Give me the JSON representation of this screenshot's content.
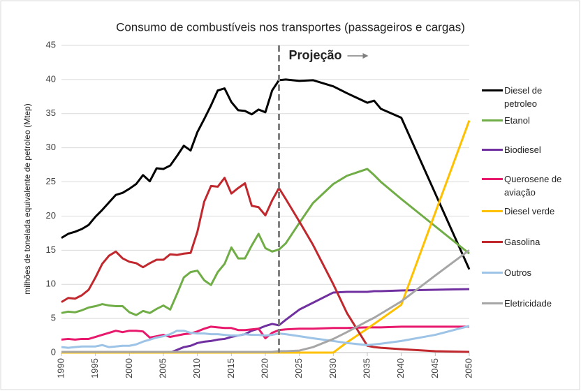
{
  "chart_data": {
    "type": "line",
    "title": "Consumo de combustíveis nos transportes (passageiros e cargas)",
    "y_label": "milhões de tonelada equivalente de petroleo (Mtep)",
    "annotations": [
      {
        "text": "Projeção",
        "x": 2022
      }
    ],
    "x": [
      1990,
      1991,
      1992,
      1993,
      1994,
      1995,
      1996,
      1997,
      1998,
      1999,
      2000,
      2001,
      2002,
      2003,
      2004,
      2005,
      2006,
      2007,
      2008,
      2009,
      2010,
      2011,
      2012,
      2013,
      2014,
      2015,
      2016,
      2017,
      2018,
      2019,
      2020,
      2021,
      2022,
      2023,
      2025,
      2027,
      2030,
      2032,
      2035,
      2036,
      2037,
      2040,
      2045,
      2050
    ],
    "xlim": [
      1990,
      2050
    ],
    "xticks": [
      1990,
      1995,
      2000,
      2005,
      2010,
      2015,
      2020,
      2025,
      2030,
      2035,
      2040,
      2045,
      2050
    ],
    "ylim": [
      0,
      45
    ],
    "yticks": [
      0,
      5,
      10,
      15,
      20,
      25,
      30,
      35,
      40,
      45
    ],
    "grid": true,
    "legend": "right",
    "series": [
      {
        "name": "Diesel de petroleo",
        "color": "#000000",
        "values": [
          16.8,
          17.4,
          17.7,
          18.1,
          18.7,
          19.9,
          20.9,
          22.0,
          23.1,
          23.4,
          24.0,
          24.7,
          26.0,
          25.1,
          27.0,
          26.9,
          27.4,
          28.8,
          30.3,
          29.6,
          32.3,
          34.2,
          36.2,
          38.4,
          38.7,
          36.7,
          35.5,
          35.4,
          34.9,
          35.6,
          35.2,
          38.4,
          39.9,
          40.0,
          39.8,
          39.9,
          39.0,
          38.0,
          36.6,
          36.9,
          35.7,
          34.4,
          23.3,
          12.2
        ]
      },
      {
        "name": "Etanol",
        "color": "#70ad47",
        "values": [
          5.8,
          6.0,
          5.9,
          6.2,
          6.6,
          6.8,
          7.1,
          6.9,
          6.8,
          6.8,
          5.9,
          5.5,
          6.1,
          5.8,
          6.4,
          6.9,
          6.3,
          8.6,
          11.0,
          11.8,
          12.0,
          10.6,
          9.9,
          11.8,
          13.0,
          15.4,
          13.8,
          13.8,
          15.7,
          17.4,
          15.3,
          14.8,
          15.1,
          16.0,
          19.0,
          21.9,
          24.7,
          25.9,
          26.9,
          26.0,
          25.0,
          22.5,
          18.5,
          14.5
        ]
      },
      {
        "name": "Biodiesel",
        "color": "#7030a0",
        "values": [
          0,
          0,
          0,
          0,
          0,
          0,
          0,
          0,
          0,
          0,
          0,
          0,
          0,
          0,
          0,
          0,
          0,
          0.4,
          0.8,
          1.0,
          1.4,
          1.6,
          1.7,
          1.9,
          2.0,
          2.3,
          2.5,
          2.7,
          3.2,
          3.5,
          3.9,
          4.2,
          4.0,
          4.8,
          6.3,
          7.3,
          8.8,
          8.9,
          8.9,
          9.0,
          9.0,
          9.1,
          9.2,
          9.3
        ]
      },
      {
        "name": "Querosene de aviação",
        "color": "#e8196c",
        "values": [
          1.9,
          2.0,
          1.9,
          2.0,
          2.0,
          2.3,
          2.6,
          2.9,
          3.2,
          3.0,
          3.2,
          3.2,
          3.1,
          2.2,
          2.4,
          2.6,
          2.3,
          2.5,
          2.7,
          2.8,
          3.1,
          3.5,
          3.8,
          3.7,
          3.6,
          3.6,
          3.3,
          3.3,
          3.4,
          3.5,
          2.1,
          2.9,
          3.3,
          3.4,
          3.5,
          3.5,
          3.6,
          3.6,
          3.7,
          3.7,
          3.7,
          3.8,
          3.8,
          3.8
        ]
      },
      {
        "name": "Diesel verde",
        "color": "#ffc000",
        "values": [
          0,
          0,
          0,
          0,
          0,
          0,
          0,
          0,
          0,
          0,
          0,
          0,
          0,
          0,
          0,
          0,
          0,
          0,
          0,
          0,
          0,
          0,
          0,
          0,
          0,
          0,
          0,
          0,
          0,
          0,
          0,
          0,
          0,
          0,
          0,
          0,
          0,
          1.5,
          3.5,
          4.2,
          4.9,
          7.0,
          20.5,
          34.0
        ]
      },
      {
        "name": "Gasolina",
        "color": "#c0282d",
        "values": [
          7.4,
          8.0,
          7.9,
          8.4,
          9.2,
          11.0,
          13.0,
          14.2,
          14.8,
          13.8,
          13.3,
          13.1,
          12.5,
          13.1,
          13.6,
          13.6,
          14.4,
          14.3,
          14.5,
          14.6,
          17.7,
          22.1,
          24.4,
          24.3,
          25.6,
          23.3,
          24.1,
          24.8,
          21.5,
          21.3,
          20.1,
          22.3,
          24.1,
          22.5,
          19.2,
          15.8,
          10.0,
          5.8,
          1.0,
          0.8,
          0.7,
          0.5,
          0.2,
          0.1
        ]
      },
      {
        "name": "Outros",
        "color": "#9dc3e6",
        "values": [
          0.8,
          0.7,
          0.8,
          0.9,
          0.9,
          0.9,
          1.1,
          0.8,
          0.9,
          1.0,
          1.0,
          1.2,
          1.6,
          1.9,
          2.2,
          2.4,
          2.7,
          3.2,
          3.2,
          2.9,
          2.8,
          2.8,
          2.7,
          2.7,
          2.6,
          2.5,
          2.5,
          2.7,
          2.6,
          2.6,
          2.5,
          2.6,
          2.8,
          2.7,
          2.4,
          2.1,
          1.7,
          1.4,
          1.1,
          1.2,
          1.3,
          1.7,
          2.6,
          3.9
        ]
      },
      {
        "name": "Eletricidade",
        "color": "#a6a6a6",
        "values": [
          0.1,
          0.1,
          0.1,
          0.1,
          0.1,
          0.1,
          0.1,
          0.1,
          0.1,
          0.1,
          0.1,
          0.1,
          0.1,
          0.1,
          0.1,
          0.1,
          0.1,
          0.1,
          0.1,
          0.1,
          0.1,
          0.1,
          0.1,
          0.1,
          0.1,
          0.1,
          0.1,
          0.1,
          0.1,
          0.1,
          0.1,
          0.1,
          0.2,
          0.2,
          0.3,
          0.8,
          2.0,
          3.0,
          4.6,
          5.1,
          5.7,
          7.5,
          11.3,
          15.0
        ]
      }
    ]
  }
}
